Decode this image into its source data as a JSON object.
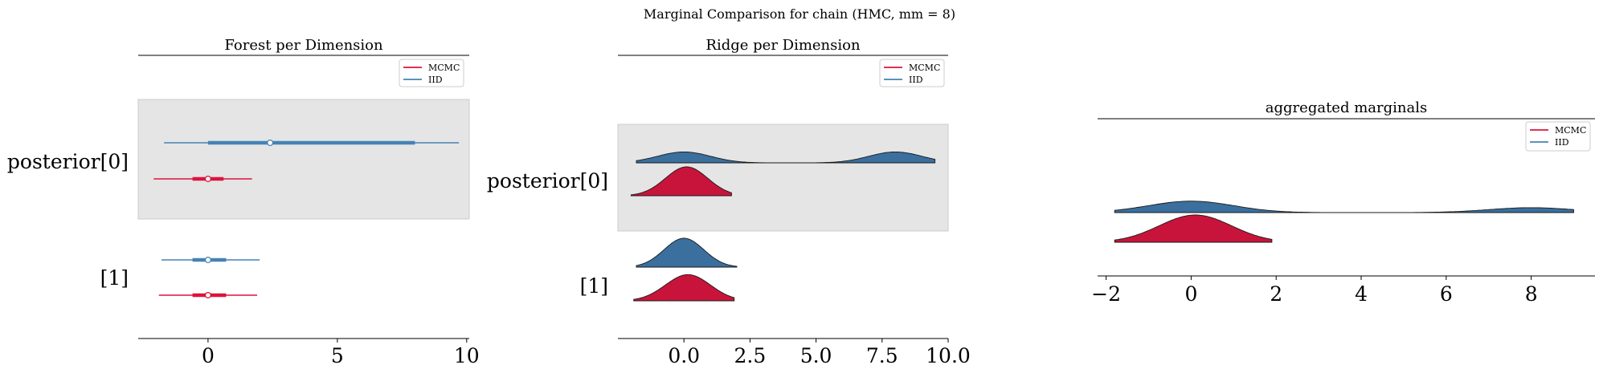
{
  "figure": {
    "suptitle": "Marginal Comparison for chain (HMC, mm = 8)"
  },
  "colors": {
    "mcmc": "#dc143c",
    "iid": "#4682b4",
    "band": "#e5e5e5",
    "iid_ridge": "#3a6f9e",
    "mcmc_ridge": "#c8143a"
  },
  "chart_data": [
    {
      "type": "forest",
      "title": "Forest per Dimension",
      "xlim": [
        -2.7,
        10.1
      ],
      "xticks": [
        0,
        5,
        10
      ],
      "legend": {
        "placement": "top-right",
        "entries": [
          "MCMC",
          "IID"
        ]
      },
      "rows": [
        {
          "label": "posterior[0]",
          "shaded": true,
          "iid": {
            "min": -1.7,
            "q25": 0.0,
            "median": 2.4,
            "q75": 8.0,
            "max": 9.7
          },
          "mcmc": {
            "min": -2.1,
            "q25": -0.6,
            "median": 0.0,
            "q75": 0.6,
            "max": 1.7
          }
        },
        {
          "label": "[1]",
          "shaded": false,
          "iid": {
            "min": -1.8,
            "q25": -0.6,
            "median": 0.0,
            "q75": 0.7,
            "max": 2.0
          },
          "mcmc": {
            "min": -1.9,
            "q25": -0.6,
            "median": 0.0,
            "q75": 0.7,
            "max": 1.9
          }
        }
      ]
    },
    {
      "type": "ridge",
      "title": "Ridge per Dimension",
      "xlim": [
        -2.5,
        10.0
      ],
      "xticks": [
        0.0,
        2.5,
        5.0,
        7.5,
        10.0
      ],
      "xtick_labels": [
        "0.0",
        "2.5",
        "5.0",
        "7.5",
        "10.0"
      ],
      "legend": {
        "placement": "top-right",
        "entries": [
          "MCMC",
          "IID"
        ]
      },
      "rows": [
        {
          "label": "posterior[0]",
          "shaded": true,
          "iid": {
            "range": [
              -1.8,
              9.5
            ],
            "modes": [
              {
                "mu": 0.0,
                "sd": 1.0,
                "w": 0.5
              },
              {
                "mu": 8.0,
                "sd": 1.0,
                "w": 0.5
              }
            ]
          },
          "mcmc": {
            "range": [
              -2.0,
              1.8
            ],
            "modes": [
              {
                "mu": 0.1,
                "sd": 0.8,
                "w": 1.0
              }
            ]
          }
        },
        {
          "label": "[1]",
          "shaded": false,
          "iid": {
            "range": [
              -1.8,
              2.0
            ],
            "modes": [
              {
                "mu": 0.0,
                "sd": 0.75,
                "w": 1.0
              }
            ]
          },
          "mcmc": {
            "range": [
              -1.9,
              1.9
            ],
            "modes": [
              {
                "mu": 0.15,
                "sd": 0.85,
                "w": 1.0
              }
            ]
          }
        }
      ]
    },
    {
      "type": "ridge",
      "title": "aggregated marginals",
      "xlim": [
        -2.2,
        9.5
      ],
      "xticks": [
        -2,
        0,
        2,
        4,
        6,
        8
      ],
      "xtick_labels": [
        "−2",
        "0",
        "2",
        "4",
        "6",
        "8"
      ],
      "legend": {
        "placement": "top-right",
        "entries": [
          "MCMC",
          "IID"
        ]
      },
      "rows": [
        {
          "label": "",
          "shaded": false,
          "iid": {
            "range": [
              -1.8,
              9.0
            ],
            "modes": [
              {
                "mu": 0.0,
                "sd": 1.0,
                "w": 0.7
              },
              {
                "mu": 8.0,
                "sd": 1.0,
                "w": 0.3
              }
            ]
          },
          "mcmc": {
            "range": [
              -1.8,
              1.9
            ],
            "modes": [
              {
                "mu": 0.1,
                "sd": 0.85,
                "w": 1.0
              }
            ]
          }
        }
      ]
    }
  ]
}
